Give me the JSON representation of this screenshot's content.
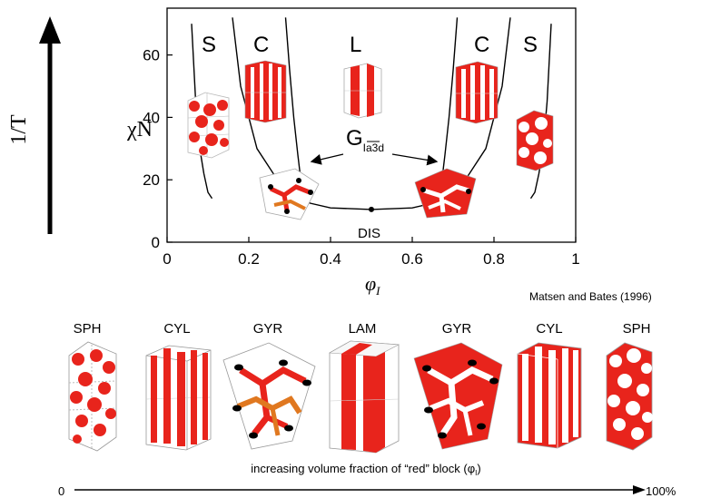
{
  "temperature_axis": {
    "label": "1/T"
  },
  "phase_diagram": {
    "ylabel": "χN",
    "xlabel": "φ",
    "xlabel_sub": "I",
    "xticks": [
      "0",
      "0.2",
      "0.4",
      "0.6",
      "0.8",
      "1"
    ],
    "yticks": [
      "0",
      "20",
      "40",
      "60"
    ],
    "region_labels": {
      "s_left": "S",
      "c_left": "C",
      "l": "L",
      "c_right": "C",
      "s_right": "S",
      "dis": "DIS"
    },
    "gyroid_label": {
      "main": "G",
      "sub": "Ia3d"
    },
    "citation": "Matsen and Bates (1996)"
  },
  "chart_data": {
    "type": "line",
    "xlim": [
      0,
      1
    ],
    "ylim": [
      0,
      75
    ],
    "xlabel": "φ",
    "ylabel": "χN",
    "series": [
      {
        "name": "",
        "x": [
          0.06,
          0.07,
          0.08,
          0.09,
          0.1,
          0.11
        ],
        "y": [
          70,
          45,
          30,
          22,
          16,
          14
        ]
      },
      {
        "name": "",
        "x": [
          0.16,
          0.18,
          0.22,
          0.27,
          0.31,
          0.35,
          0.4,
          0.5,
          0.6,
          0.65,
          0.69,
          0.73,
          0.78,
          0.82,
          0.84
        ],
        "y": [
          72,
          50,
          30,
          20,
          15,
          12.5,
          11,
          10.5,
          11,
          12.5,
          15,
          20,
          30,
          50,
          72
        ]
      },
      {
        "name": "",
        "x": [
          0.29,
          0.3,
          0.31,
          0.32,
          0.33
        ],
        "y": [
          72,
          55,
          40,
          28,
          17
        ]
      },
      {
        "name": "",
        "x": [
          0.67,
          0.68,
          0.69,
          0.7,
          0.71
        ],
        "y": [
          17,
          28,
          40,
          55,
          72
        ]
      },
      {
        "name": "",
        "x": [
          0.89,
          0.9,
          0.91,
          0.92,
          0.93,
          0.94
        ],
        "y": [
          14,
          16,
          22,
          30,
          45,
          70
        ]
      }
    ]
  },
  "morphology_row": {
    "labels": [
      "SPH",
      "CYL",
      "GYR",
      "LAM",
      "GYR",
      "CYL",
      "SPH"
    ],
    "axis_caption": "increasing volume fraction of “red” block (φ",
    "axis_caption_sub": "I",
    "axis_caption_end": ")",
    "axis_start": "0",
    "axis_end": "100%"
  },
  "colors": {
    "red": "#e8241c",
    "orange": "#e07820",
    "black": "#000000"
  }
}
